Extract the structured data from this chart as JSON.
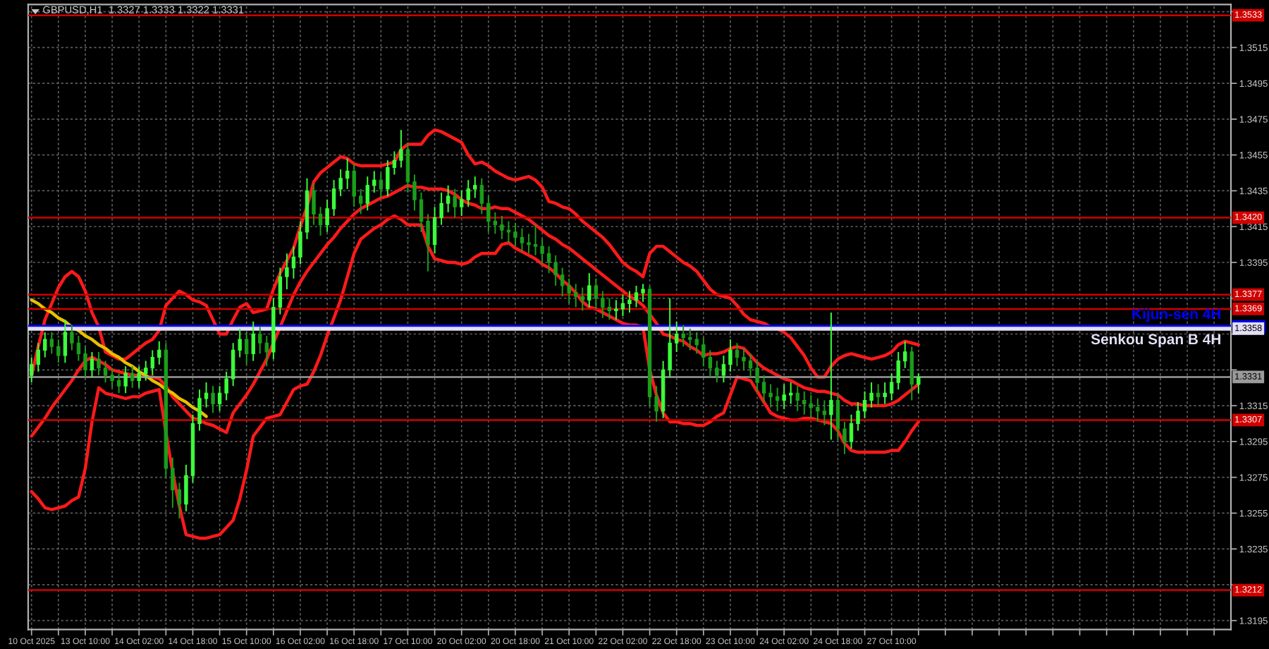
{
  "chart_data": {
    "type": "candlestick",
    "title": "GBPUSD,H1  1.3327 1.3333 1.3322 1.3331",
    "categories": [
      "10 Oct 2025",
      null,
      null,
      null,
      null,
      null,
      null,
      null,
      "13 Oct 10:00",
      null,
      null,
      null,
      null,
      null,
      null,
      null,
      "14 Oct 02:00",
      null,
      null,
      null,
      null,
      null,
      null,
      null,
      "14 Oct 18:00",
      null,
      null,
      null,
      null,
      null,
      null,
      null,
      "15 Oct 10:00",
      null,
      null,
      null,
      null,
      null,
      null,
      null,
      "16 Oct 02:00",
      null,
      null,
      null,
      null,
      null,
      null,
      null,
      "16 Oct 18:00",
      null,
      null,
      null,
      null,
      null,
      null,
      null,
      "17 Oct 10:00",
      null,
      null,
      null,
      null,
      null,
      null,
      null,
      "20 Oct 02:00",
      null,
      null,
      null,
      null,
      null,
      null,
      null,
      "20 Oct 18:00",
      null,
      null,
      null,
      null,
      null,
      null,
      null,
      "21 Oct 10:00",
      null,
      null,
      null,
      null,
      null,
      null,
      null,
      "22 Oct 02:00",
      null,
      null,
      null,
      null,
      null,
      null,
      null,
      "22 Oct 18:00",
      null,
      null,
      null,
      null,
      null,
      null,
      null,
      "23 Oct 10:00",
      null,
      null,
      null,
      null,
      null,
      null,
      null,
      "24 Oct 02:00",
      null,
      null,
      null,
      null,
      null,
      null,
      null,
      "24 Oct 18:00",
      null,
      null,
      null,
      null,
      null,
      null,
      null,
      "27 Oct 10:00",
      null,
      null,
      null,
      null,
      null,
      null,
      null,
      null,
      null,
      null,
      null,
      null,
      null,
      null,
      null,
      null,
      null,
      null,
      null,
      null,
      null,
      null,
      null,
      null,
      null,
      null,
      null,
      null,
      null,
      null,
      null,
      null,
      null,
      null,
      null,
      null,
      null,
      null,
      null,
      null,
      null,
      null,
      null,
      null,
      null,
      null,
      null,
      null,
      null,
      null
    ],
    "ohlc": [
      [
        1.3332,
        1.3342,
        1.3328,
        1.3338
      ],
      [
        1.3338,
        1.335,
        1.3334,
        1.3346
      ],
      [
        1.3346,
        1.3356,
        1.3342,
        1.3352
      ],
      [
        1.3352,
        1.3356,
        1.3344,
        1.3348
      ],
      [
        1.3348,
        1.3352,
        1.3339,
        1.3343
      ],
      [
        1.3343,
        1.3363,
        1.3339,
        1.3356
      ],
      [
        1.3356,
        1.336,
        1.3346,
        1.335
      ],
      [
        1.335,
        1.3354,
        1.334,
        1.3344
      ],
      [
        1.3344,
        1.3348,
        1.3331,
        1.3335
      ],
      [
        1.3335,
        1.3345,
        1.3331,
        1.3341
      ],
      [
        1.3341,
        1.3345,
        1.3332,
        1.3336
      ],
      [
        1.3336,
        1.334,
        1.3328,
        1.3332
      ],
      [
        1.3332,
        1.3336,
        1.3325,
        1.3329
      ],
      [
        1.3329,
        1.3333,
        1.3322,
        1.3326
      ],
      [
        1.3326,
        1.3337,
        1.3322,
        1.3333
      ],
      [
        1.3333,
        1.3337,
        1.3325,
        1.3329
      ],
      [
        1.3329,
        1.3337,
        1.3325,
        1.3333
      ],
      [
        1.3333,
        1.334,
        1.3329,
        1.3336
      ],
      [
        1.3336,
        1.3346,
        1.3332,
        1.3342
      ],
      [
        1.3342,
        1.3351,
        1.3338,
        1.3346
      ],
      [
        1.3346,
        1.335,
        1.3275,
        1.328
      ],
      [
        1.328,
        1.3286,
        1.3258,
        1.3268
      ],
      [
        1.3268,
        1.3272,
        1.3252,
        1.326
      ],
      [
        1.326,
        1.3282,
        1.3256,
        1.3276
      ],
      [
        1.3276,
        1.331,
        1.3272,
        1.3305
      ],
      [
        1.3305,
        1.3324,
        1.3301,
        1.3319
      ],
      [
        1.3319,
        1.3328,
        1.3314,
        1.3322
      ],
      [
        1.3322,
        1.3326,
        1.3311,
        1.3316
      ],
      [
        1.3316,
        1.3326,
        1.3312,
        1.3322
      ],
      [
        1.3322,
        1.3334,
        1.3318,
        1.333
      ],
      [
        1.333,
        1.335,
        1.3326,
        1.3346
      ],
      [
        1.3346,
        1.3358,
        1.3342,
        1.3352
      ],
      [
        1.3352,
        1.3356,
        1.3338,
        1.3344
      ],
      [
        1.3344,
        1.3362,
        1.334,
        1.3355
      ],
      [
        1.3355,
        1.3359,
        1.3344,
        1.335
      ],
      [
        1.335,
        1.3354,
        1.3337,
        1.3345
      ],
      [
        1.3345,
        1.3375,
        1.3341,
        1.337
      ],
      [
        1.337,
        1.3392,
        1.3366,
        1.3387
      ],
      [
        1.3387,
        1.34,
        1.338,
        1.3392
      ],
      [
        1.3392,
        1.3404,
        1.3386,
        1.3398
      ],
      [
        1.3398,
        1.3418,
        1.3394,
        1.3412
      ],
      [
        1.3412,
        1.3442,
        1.3408,
        1.3435
      ],
      [
        1.3435,
        1.3439,
        1.3416,
        1.3422
      ],
      [
        1.3422,
        1.3426,
        1.341,
        1.3416
      ],
      [
        1.3416,
        1.343,
        1.3412,
        1.3425
      ],
      [
        1.3425,
        1.3441,
        1.3421,
        1.3436
      ],
      [
        1.3436,
        1.3447,
        1.3432,
        1.3442
      ],
      [
        1.3442,
        1.3453,
        1.3436,
        1.3446
      ],
      [
        1.3446,
        1.345,
        1.3426,
        1.3432
      ],
      [
        1.3432,
        1.3436,
        1.3422,
        1.3428
      ],
      [
        1.3428,
        1.3443,
        1.3424,
        1.3438
      ],
      [
        1.3438,
        1.3446,
        1.3434,
        1.3441
      ],
      [
        1.3441,
        1.3445,
        1.3431,
        1.3436
      ],
      [
        1.3436,
        1.3452,
        1.3432,
        1.3448
      ],
      [
        1.3448,
        1.3457,
        1.3444,
        1.3452
      ],
      [
        1.3452,
        1.3469,
        1.3448,
        1.3458
      ],
      [
        1.3458,
        1.3462,
        1.3434,
        1.344
      ],
      [
        1.344,
        1.3444,
        1.3424,
        1.343
      ],
      [
        1.343,
        1.3434,
        1.3412,
        1.3418
      ],
      [
        1.3418,
        1.3422,
        1.339,
        1.3405
      ],
      [
        1.3405,
        1.3426,
        1.34,
        1.342
      ],
      [
        1.342,
        1.3434,
        1.3416,
        1.3428
      ],
      [
        1.3428,
        1.3438,
        1.3423,
        1.3432
      ],
      [
        1.3432,
        1.3436,
        1.342,
        1.3426
      ],
      [
        1.3426,
        1.3435,
        1.3421,
        1.343
      ],
      [
        1.343,
        1.3441,
        1.3426,
        1.3436
      ],
      [
        1.3436,
        1.3443,
        1.3431,
        1.3438
      ],
      [
        1.3438,
        1.3442,
        1.3422,
        1.3428
      ],
      [
        1.3428,
        1.3432,
        1.3412,
        1.3418
      ],
      [
        1.3418,
        1.3423,
        1.3411,
        1.3416
      ],
      [
        1.3416,
        1.3421,
        1.3408,
        1.3413
      ],
      [
        1.3413,
        1.3418,
        1.3406,
        1.3412
      ],
      [
        1.3412,
        1.3417,
        1.3404,
        1.3409
      ],
      [
        1.3409,
        1.3414,
        1.3401,
        1.3406
      ],
      [
        1.3406,
        1.3411,
        1.34,
        1.3405
      ],
      [
        1.3405,
        1.3416,
        1.3399,
        1.3404
      ],
      [
        1.3404,
        1.3408,
        1.3394,
        1.34
      ],
      [
        1.34,
        1.3404,
        1.3389,
        1.3395
      ],
      [
        1.3395,
        1.3399,
        1.3382,
        1.3388
      ],
      [
        1.3388,
        1.3392,
        1.3376,
        1.3382
      ],
      [
        1.3382,
        1.3386,
        1.3372,
        1.3378
      ],
      [
        1.3378,
        1.3383,
        1.337,
        1.3376
      ],
      [
        1.3376,
        1.3381,
        1.3368,
        1.3374
      ],
      [
        1.3374,
        1.3389,
        1.337,
        1.3382
      ],
      [
        1.3382,
        1.3386,
        1.3369,
        1.3375
      ],
      [
        1.3375,
        1.3379,
        1.3364,
        1.337
      ],
      [
        1.337,
        1.3375,
        1.3363,
        1.3368
      ],
      [
        1.3368,
        1.3374,
        1.3363,
        1.3369
      ],
      [
        1.3369,
        1.3377,
        1.3365,
        1.3372
      ],
      [
        1.3372,
        1.3379,
        1.3367,
        1.3374
      ],
      [
        1.3374,
        1.3382,
        1.337,
        1.3378
      ],
      [
        1.3378,
        1.3383,
        1.3373,
        1.338
      ],
      [
        1.338,
        1.3382,
        1.3315,
        1.332
      ],
      [
        1.332,
        1.3326,
        1.3306,
        1.3312
      ],
      [
        1.3312,
        1.334,
        1.3308,
        1.3335
      ],
      [
        1.3335,
        1.3375,
        1.3331,
        1.335
      ],
      [
        1.335,
        1.3362,
        1.3345,
        1.3355
      ],
      [
        1.3355,
        1.336,
        1.3348,
        1.3353
      ],
      [
        1.3353,
        1.3358,
        1.3346,
        1.3352
      ],
      [
        1.3352,
        1.3356,
        1.3344,
        1.3349
      ],
      [
        1.3349,
        1.3353,
        1.3337,
        1.3342
      ],
      [
        1.3342,
        1.3346,
        1.3331,
        1.3336
      ],
      [
        1.3336,
        1.334,
        1.3328,
        1.3332
      ],
      [
        1.3332,
        1.3343,
        1.3328,
        1.3338
      ],
      [
        1.3338,
        1.3352,
        1.3334,
        1.3346
      ],
      [
        1.3346,
        1.335,
        1.3337,
        1.3342
      ],
      [
        1.3342,
        1.3347,
        1.3335,
        1.334
      ],
      [
        1.334,
        1.3344,
        1.3331,
        1.3336
      ],
      [
        1.3336,
        1.334,
        1.3323,
        1.3328
      ],
      [
        1.3328,
        1.3332,
        1.3317,
        1.3322
      ],
      [
        1.3322,
        1.3327,
        1.3314,
        1.332
      ],
      [
        1.332,
        1.3325,
        1.3312,
        1.3318
      ],
      [
        1.3318,
        1.3327,
        1.3313,
        1.3321
      ],
      [
        1.3321,
        1.3328,
        1.3316,
        1.3322
      ],
      [
        1.3322,
        1.3326,
        1.3312,
        1.3318
      ],
      [
        1.3318,
        1.3323,
        1.331,
        1.3316
      ],
      [
        1.3316,
        1.3321,
        1.3308,
        1.3314
      ],
      [
        1.3314,
        1.3319,
        1.3306,
        1.3312
      ],
      [
        1.3312,
        1.3318,
        1.3304,
        1.331
      ],
      [
        1.331,
        1.3367,
        1.3296,
        1.3318
      ],
      [
        1.3318,
        1.3322,
        1.3296,
        1.3302
      ],
      [
        1.3302,
        1.3306,
        1.3288,
        1.3295
      ],
      [
        1.3295,
        1.331,
        1.3291,
        1.3305
      ],
      [
        1.3305,
        1.3317,
        1.3301,
        1.3312
      ],
      [
        1.3312,
        1.3323,
        1.3308,
        1.3318
      ],
      [
        1.3318,
        1.3328,
        1.3314,
        1.3322
      ],
      [
        1.3322,
        1.3327,
        1.3315,
        1.332
      ],
      [
        1.332,
        1.3328,
        1.3316,
        1.3322
      ],
      [
        1.3322,
        1.3333,
        1.3318,
        1.3328
      ],
      [
        1.3328,
        1.3345,
        1.3324,
        1.334
      ],
      [
        1.334,
        1.3351,
        1.3336,
        1.3345
      ],
      [
        1.3345,
        1.3348,
        1.3318,
        1.3327
      ],
      [
        1.3327,
        1.3333,
        1.3322,
        1.3331
      ],
      null,
      null,
      null,
      null,
      null,
      null,
      null,
      null,
      null,
      null,
      null,
      null,
      null,
      null,
      null,
      null,
      null,
      null,
      null,
      null,
      null,
      null,
      null,
      null,
      null,
      null,
      null,
      null,
      null,
      null,
      null,
      null,
      null,
      null,
      null,
      null,
      null,
      null,
      null,
      null,
      null,
      null,
      null,
      null,
      null,
      null
    ],
    "colors": [
      "#3cff3c",
      "#3cff3c",
      "#3cff3c",
      "#1b9e1b",
      "#1b9e1b",
      "#3cff3c",
      "#1b9e1b",
      "#1b9e1b",
      "#1b9e1b",
      "#3cff3c",
      "#1b9e1b",
      "#1b9e1b",
      "#1b9e1b",
      "#1b9e1b",
      "#3cff3c",
      "#1b9e1b",
      "#3cff3c",
      "#3cff3c",
      "#3cff3c",
      "#3cff3c",
      "#1b9e1b",
      "#1b9e1b",
      "#1b9e1b",
      "#3cff3c",
      "#3cff3c",
      "#3cff3c",
      "#3cff3c",
      "#1b9e1b",
      "#3cff3c",
      "#3cff3c",
      "#3cff3c",
      "#3cff3c",
      "#1b9e1b",
      "#3cff3c",
      "#1b9e1b",
      "#1b9e1b",
      "#3cff3c",
      "#3cff3c",
      "#3cff3c",
      "#3cff3c",
      "#3cff3c",
      "#3cff3c",
      "#1b9e1b",
      "#1b9e1b",
      "#3cff3c",
      "#3cff3c",
      "#3cff3c",
      "#3cff3c",
      "#1b9e1b",
      "#1b9e1b",
      "#3cff3c",
      "#3cff3c",
      "#1b9e1b",
      "#3cff3c",
      "#3cff3c",
      "#3cff3c",
      "#1b9e1b",
      "#1b9e1b",
      "#1b9e1b",
      "#1b9e1b",
      "#3cff3c",
      "#3cff3c",
      "#3cff3c",
      "#1b9e1b",
      "#3cff3c",
      "#3cff3c",
      "#3cff3c",
      "#1b9e1b",
      "#1b9e1b",
      "#1b9e1b",
      "#1b9e1b",
      "#1b9e1b",
      "#1b9e1b",
      "#1b9e1b",
      "#1b9e1b",
      "#1b9e1b",
      "#1b9e1b",
      "#1b9e1b",
      "#1b9e1b",
      "#1b9e1b",
      "#1b9e1b",
      "#1b9e1b",
      "#1b9e1b",
      "#3cff3c",
      "#1b9e1b",
      "#1b9e1b",
      "#1b9e1b",
      "#3cff3c",
      "#3cff3c",
      "#3cff3c",
      "#3cff3c",
      "#3cff3c",
      "#1b9e1b",
      "#1b9e1b",
      "#3cff3c",
      "#3cff3c",
      "#3cff3c",
      "#1b9e1b",
      "#1b9e1b",
      "#1b9e1b",
      "#1b9e1b",
      "#1b9e1b",
      "#1b9e1b",
      "#3cff3c",
      "#3cff3c",
      "#1b9e1b",
      "#1b9e1b",
      "#1b9e1b",
      "#1b9e1b",
      "#1b9e1b",
      "#1b9e1b",
      "#1b9e1b",
      "#3cff3c",
      "#3cff3c",
      "#1b9e1b",
      "#1b9e1b",
      "#1b9e1b",
      "#1b9e1b",
      "#1b9e1b",
      "#3cff3c",
      "#1b9e1b",
      "#1b9e1b",
      "#3cff3c",
      "#3cff3c",
      "#3cff3c",
      "#3cff3c",
      "#1b9e1b",
      "#3cff3c",
      "#3cff3c",
      "#3cff3c",
      "#3cff3c",
      "#1b9e1b",
      "#3cff3c",
      null,
      null,
      null,
      null,
      null,
      null,
      null,
      null,
      null,
      null,
      null,
      null,
      null,
      null,
      null,
      null,
      null,
      null,
      null,
      null,
      null,
      null,
      null,
      null,
      null,
      null,
      null,
      null,
      null,
      null,
      null,
      null,
      null,
      null,
      null,
      null,
      null,
      null,
      null,
      null,
      null,
      null,
      null,
      null,
      null,
      null
    ],
    "series": [
      {
        "type": "line",
        "color": "#ff1a1a",
        "values": [
          1.3332,
          1.3348,
          1.3363,
          1.3372,
          1.3381,
          1.3387,
          1.339,
          1.3387,
          1.3379,
          1.3367,
          1.3359,
          1.3345,
          1.3343,
          1.3341,
          1.3341,
          1.3344,
          1.3347,
          1.335,
          1.3352,
          1.3357,
          1.3371,
          1.3375,
          1.3379,
          1.3377,
          1.3374,
          1.3373,
          1.3371,
          1.3363,
          1.3355,
          1.3355,
          1.3363,
          1.337,
          1.3372,
          1.3367,
          1.3368,
          1.3369,
          1.338,
          1.3389,
          1.3396,
          1.3403,
          1.3415,
          1.3426,
          1.344,
          1.3445,
          1.3448,
          1.3451,
          1.3454,
          1.3453,
          1.345,
          1.3449,
          1.3449,
          1.3449,
          1.3449,
          1.345,
          1.3451,
          1.3458,
          1.3461,
          1.3461,
          1.3461,
          1.3466,
          1.3469,
          1.3468,
          1.3466,
          1.3464,
          1.3462,
          1.3455,
          1.345,
          1.3451,
          1.3449,
          1.3446,
          1.3444,
          1.3442,
          1.3441,
          1.3442,
          1.3443,
          1.3441,
          1.3437,
          1.3429,
          1.3428,
          1.3426,
          1.3425,
          1.3422,
          1.3418,
          1.3415,
          1.3412,
          1.3409,
          1.3405,
          1.34,
          1.3395,
          1.3392,
          1.339,
          1.3387,
          1.34,
          1.3404,
          1.3404,
          1.3401,
          1.3398,
          1.3395,
          1.3393,
          1.339,
          1.3385,
          1.338,
          1.3377,
          1.3376,
          1.3375,
          1.3371,
          1.3366,
          1.3363,
          1.3362,
          1.3361,
          1.3359,
          1.3358,
          1.3356,
          1.3353,
          1.3348,
          1.3343,
          1.3336,
          1.3331,
          1.3331,
          1.3337,
          1.3341,
          1.3343,
          1.3344,
          1.3343,
          1.3342,
          1.3341,
          1.3342,
          1.3343,
          1.3345,
          1.3349,
          1.3351,
          1.335,
          1.3349,
          null,
          null,
          null,
          null,
          null,
          null,
          null,
          null,
          null,
          null,
          null,
          null,
          null,
          null,
          null,
          null,
          null,
          null,
          null,
          null,
          null,
          null,
          null,
          null,
          null,
          null,
          null,
          null,
          null,
          null,
          null,
          null,
          null,
          null,
          null,
          null,
          null,
          null,
          null,
          null,
          null,
          null,
          null,
          null,
          null,
          null
        ]
      },
      {
        "type": "line",
        "color": "#ff1a1a",
        "values": [
          1.3298,
          1.3303,
          1.3308,
          1.3314,
          1.3319,
          1.3324,
          1.3329,
          1.3335,
          1.334,
          1.3342,
          1.334,
          1.3338,
          1.3335,
          1.3334,
          1.3333,
          1.3332,
          1.3332,
          1.3331,
          1.3331,
          1.333,
          1.3326,
          1.332,
          1.3316,
          1.3312,
          1.3308,
          1.3307,
          1.3305,
          1.3304,
          1.3302,
          1.33,
          1.3311,
          1.3316,
          1.3321,
          1.3327,
          1.3334,
          1.3341,
          1.335,
          1.3359,
          1.3368,
          1.3377,
          1.3384,
          1.339,
          1.3395,
          1.34,
          1.3405,
          1.3409,
          1.3414,
          1.3418,
          1.3422,
          1.3425,
          1.3427,
          1.3429,
          1.3431,
          1.3432,
          1.3434,
          1.3436,
          1.3438,
          1.3437,
          1.3437,
          1.3436,
          1.3436,
          1.3436,
          1.3435,
          1.3433,
          1.343,
          1.3428,
          1.3427,
          1.3425,
          1.3425,
          1.3426,
          1.3425,
          1.3425,
          1.3423,
          1.3421,
          1.3419,
          1.3416,
          1.3413,
          1.341,
          1.3408,
          1.3405,
          1.3403,
          1.34,
          1.3397,
          1.3394,
          1.3391,
          1.3388,
          1.3385,
          1.3382,
          1.3379,
          1.3376,
          1.3374,
          1.3371,
          1.3366,
          1.3361,
          1.3355,
          1.3354,
          1.3352,
          1.3351,
          1.3348,
          1.3346,
          1.3343,
          1.3344,
          1.3344,
          1.3345,
          1.3347,
          1.3348,
          1.3347,
          1.3343,
          1.3339,
          1.3336,
          1.3334,
          1.3332,
          1.333,
          1.3329,
          1.3327,
          1.3325,
          1.3324,
          1.3323,
          1.3323,
          1.3322,
          1.3321,
          1.3318,
          1.3316,
          1.3316,
          1.3315,
          1.3315,
          1.3315,
          1.3315,
          1.3316,
          1.3318,
          1.3321,
          1.3324,
          1.3327,
          null,
          null,
          null,
          null,
          null,
          null,
          null,
          null,
          null,
          null,
          null,
          null,
          null,
          null,
          null,
          null,
          null,
          null,
          null,
          null,
          null,
          null,
          null,
          null,
          null,
          null,
          null,
          null,
          null,
          null,
          null,
          null,
          null,
          null,
          null,
          null,
          null,
          null,
          null,
          null,
          null,
          null,
          null,
          null,
          null,
          null
        ]
      },
      {
        "type": "line",
        "color": "#ff1a1a",
        "values": [
          1.3267,
          1.3263,
          1.3258,
          1.3257,
          1.3258,
          1.3259,
          1.3262,
          1.3264,
          1.328,
          1.3306,
          1.3325,
          1.3322,
          1.3321,
          1.332,
          1.3319,
          1.332,
          1.332,
          1.3322,
          1.3323,
          1.3324,
          1.33,
          1.3278,
          1.3259,
          1.3243,
          1.3242,
          1.3241,
          1.3241,
          1.3242,
          1.3243,
          1.3247,
          1.3251,
          1.3263,
          1.3279,
          1.3298,
          1.3303,
          1.3308,
          1.3309,
          1.331,
          1.3317,
          1.3324,
          1.3326,
          1.3327,
          1.3334,
          1.3343,
          1.3354,
          1.3364,
          1.3374,
          1.3387,
          1.34,
          1.3408,
          1.3411,
          1.3414,
          1.3416,
          1.3419,
          1.3421,
          1.3419,
          1.3416,
          1.3416,
          1.3416,
          1.3404,
          1.3397,
          1.3396,
          1.3395,
          1.3395,
          1.3394,
          1.3395,
          1.3398,
          1.34,
          1.34,
          1.34,
          1.3405,
          1.3406,
          1.3403,
          1.3401,
          1.3399,
          1.3397,
          1.3394,
          1.3392,
          1.3389,
          1.3385,
          1.3382,
          1.3378,
          1.3373,
          1.337,
          1.3369,
          1.3367,
          1.3365,
          1.3363,
          1.3361,
          1.336,
          1.336,
          1.3359,
          1.3335,
          1.3321,
          1.3311,
          1.3306,
          1.3306,
          1.3305,
          1.3305,
          1.3304,
          1.3304,
          1.3306,
          1.3309,
          1.3311,
          1.3321,
          1.3331,
          1.333,
          1.3329,
          1.3323,
          1.3317,
          1.3311,
          1.3309,
          1.3308,
          1.3307,
          1.3307,
          1.3308,
          1.3308,
          1.3307,
          1.3306,
          1.3305,
          1.3301,
          1.3294,
          1.329,
          1.3289,
          1.3289,
          1.3289,
          1.3289,
          1.3289,
          1.329,
          1.329,
          1.3295,
          1.3301,
          1.3306,
          null,
          null,
          null,
          null,
          null,
          null,
          null,
          null,
          null,
          null,
          null,
          null,
          null,
          null,
          null,
          null,
          null,
          null,
          null,
          null,
          null,
          null,
          null,
          null,
          null,
          null,
          null,
          null,
          null,
          null,
          null,
          null,
          null,
          null,
          null,
          null,
          null,
          null,
          null,
          null,
          null,
          null,
          null,
          null,
          null,
          null
        ]
      },
      {
        "type": "line",
        "color": "#e8c000",
        "values": [
          1.3374,
          1.3372,
          1.3369,
          1.3367,
          1.3364,
          1.3362,
          1.3359,
          1.3357,
          1.3354,
          1.3352,
          1.3349,
          1.3347,
          1.3344,
          1.3342,
          1.3339,
          1.3337,
          1.3334,
          1.3332,
          1.3329,
          1.3327,
          1.3324,
          1.3322,
          1.3319,
          1.3317,
          1.3314,
          1.3312,
          1.3309,
          null,
          null,
          null,
          null,
          null,
          null,
          null,
          null,
          null,
          null,
          null,
          null,
          null,
          null,
          null,
          null,
          null,
          null,
          null,
          null,
          null,
          null,
          null,
          null,
          null,
          null,
          null,
          null,
          null,
          null,
          null,
          null,
          null,
          null,
          null,
          null,
          null,
          null,
          null,
          null,
          null,
          null,
          null,
          null,
          null,
          null,
          null,
          null,
          null,
          null,
          null,
          null,
          null,
          null,
          null,
          null,
          null,
          null,
          null,
          null,
          null,
          null,
          null,
          null,
          null,
          null,
          null,
          null,
          null,
          null,
          null,
          null,
          null,
          null,
          null,
          null,
          null,
          null,
          null,
          null,
          null,
          null,
          null,
          null,
          null,
          null,
          null,
          null,
          null,
          null,
          null,
          null,
          null,
          null,
          null,
          null,
          null,
          null,
          null,
          null,
          null,
          null,
          null,
          null,
          null,
          null,
          null,
          null,
          null,
          null,
          null,
          null,
          null,
          null,
          null,
          null,
          null,
          null,
          null,
          null,
          null,
          null,
          null,
          null,
          null,
          null,
          null,
          null,
          null,
          null,
          null,
          null,
          null,
          null,
          null,
          null,
          null,
          null,
          null,
          null,
          null,
          null,
          null,
          null,
          null,
          null,
          null,
          null,
          null,
          null,
          null,
          null
        ]
      }
    ],
    "ref_lines": [
      {
        "axis": "y",
        "value": 1.3533,
        "label": "1.3533",
        "color": "#d00000"
      },
      {
        "axis": "y",
        "value": 1.342,
        "label": "1.3420",
        "color": "#d00000"
      },
      {
        "axis": "y",
        "value": 1.3377,
        "label": "1.3377",
        "color": "#d00000"
      },
      {
        "axis": "y",
        "value": 1.3369,
        "label": "1.3369",
        "color": "#d00000"
      },
      {
        "axis": "y",
        "value": 1.3359,
        "color": "#0000ff"
      },
      {
        "axis": "y",
        "value": 1.3358,
        "label": "1.3358",
        "color": "#e4def6"
      },
      {
        "axis": "y",
        "value": 1.3331,
        "label": "1.3331",
        "color": "#9a9a9a"
      },
      {
        "axis": "y",
        "value": 1.3307,
        "label": "1.3307",
        "color": "#d00000"
      },
      {
        "axis": "y",
        "value": 1.3212,
        "label": "1.3212",
        "color": "#d00000"
      }
    ],
    "annotations": [
      {
        "text": "Kijun-sen 4H",
        "y": 1.3359
      },
      {
        "text": "Senkou Span B 4H",
        "y": 1.3358
      }
    ],
    "ylim": [
      1.319,
      1.3539
    ],
    "yticks": [
      1.3195,
      {
        "value": 1.3215,
        "label": null
      },
      1.3235,
      1.3255,
      1.3275,
      1.3295,
      1.3315,
      {
        "value": 1.3335,
        "label": null
      },
      {
        "value": 1.3355,
        "label": null
      },
      {
        "value": 1.3375,
        "label": null
      },
      1.3395,
      1.3415,
      1.3435,
      1.3455,
      1.3475,
      1.3495,
      1.3515,
      {
        "value": 1.3535,
        "label": null
      }
    ],
    "grid": true
  }
}
